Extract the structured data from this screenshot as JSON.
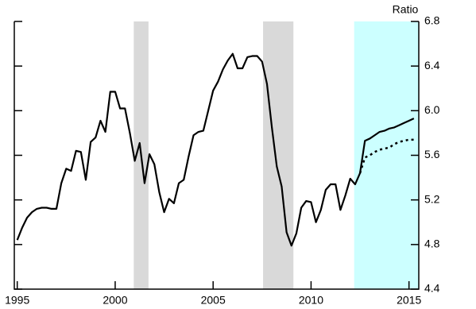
{
  "chart_data": {
    "type": "line",
    "y_axis_label": "Ratio",
    "xlim": [
      1994.85,
      2015.5
    ],
    "xticks": [
      1995,
      2000,
      2005,
      2010,
      2015
    ],
    "ylim": [
      4.4,
      6.8
    ],
    "yticks": [
      4.4,
      4.8,
      5.2,
      5.6,
      6.0,
      6.4,
      6.8
    ],
    "shaded_regions": [
      {
        "range": [
          2000.95,
          2001.7
        ],
        "color": "#d9d9d9"
      },
      {
        "range": [
          2007.55,
          2009.1
        ],
        "color": "#d9d9d9"
      },
      {
        "range": [
          2012.2,
          2015.5
        ],
        "color": "#ccffff"
      }
    ],
    "x": [
      1995,
      1995.25,
      1995.5,
      1995.75,
      1996,
      1996.25,
      1996.5,
      1996.75,
      1997,
      1997.25,
      1997.5,
      1997.75,
      1998,
      1998.25,
      1998.5,
      1998.75,
      1999,
      1999.25,
      1999.5,
      1999.75,
      2000,
      2000.25,
      2000.5,
      2000.75,
      2001,
      2001.25,
      2001.5,
      2001.75,
      2002,
      2002.25,
      2002.5,
      2002.75,
      2003,
      2003.25,
      2003.5,
      2003.75,
      2004,
      2004.25,
      2004.5,
      2004.75,
      2005,
      2005.25,
      2005.5,
      2005.75,
      2006,
      2006.25,
      2006.5,
      2006.75,
      2007,
      2007.25,
      2007.5,
      2007.75,
      2008,
      2008.25,
      2008.5,
      2008.75,
      2009,
      2009.25,
      2009.5,
      2009.75,
      2010,
      2010.25,
      2010.5,
      2010.75,
      2011,
      2011.25,
      2011.5,
      2011.75,
      2012,
      2012.25,
      2012.5,
      2012.75,
      2013,
      2013.25,
      2013.5,
      2013.75,
      2014,
      2014.25,
      2014.5,
      2014.75,
      2015,
      2015.25
    ],
    "series": [
      {
        "color": "#000000",
        "dash": "solid",
        "values": [
          4.84,
          4.95,
          5.04,
          5.09,
          5.12,
          5.13,
          5.13,
          5.12,
          5.12,
          5.35,
          5.48,
          5.46,
          5.64,
          5.63,
          5.38,
          5.72,
          5.76,
          5.91,
          5.81,
          6.17,
          6.17,
          6.02,
          6.02,
          5.8,
          5.55,
          5.71,
          5.35,
          5.61,
          5.52,
          5.27,
          5.09,
          5.21,
          5.17,
          5.35,
          5.38,
          5.59,
          5.78,
          5.81,
          5.82,
          6.0,
          6.18,
          6.26,
          6.37,
          6.45,
          6.51,
          6.38,
          6.38,
          6.48,
          6.49,
          6.49,
          6.44,
          6.24,
          5.85,
          5.5,
          5.32,
          4.91,
          4.79,
          4.9,
          5.13,
          5.19,
          5.18,
          5.0,
          5.11,
          5.29,
          5.34,
          5.34,
          5.11,
          5.24,
          5.39,
          5.34,
          5.44,
          5.73,
          5.75,
          5.78,
          5.81,
          5.82,
          5.84,
          5.85,
          5.87,
          5.89,
          5.91,
          5.93
        ]
      },
      {
        "color": "#000000",
        "dash": "dotted",
        "x": [
          2012.5,
          2012.75,
          2013,
          2013.25,
          2013.5,
          2013.75,
          2014,
          2014.25,
          2014.5,
          2014.75,
          2015,
          2015.25
        ],
        "values": [
          5.44,
          5.58,
          5.6,
          5.63,
          5.65,
          5.66,
          5.67,
          5.7,
          5.72,
          5.73,
          5.74,
          5.74
        ]
      }
    ]
  }
}
